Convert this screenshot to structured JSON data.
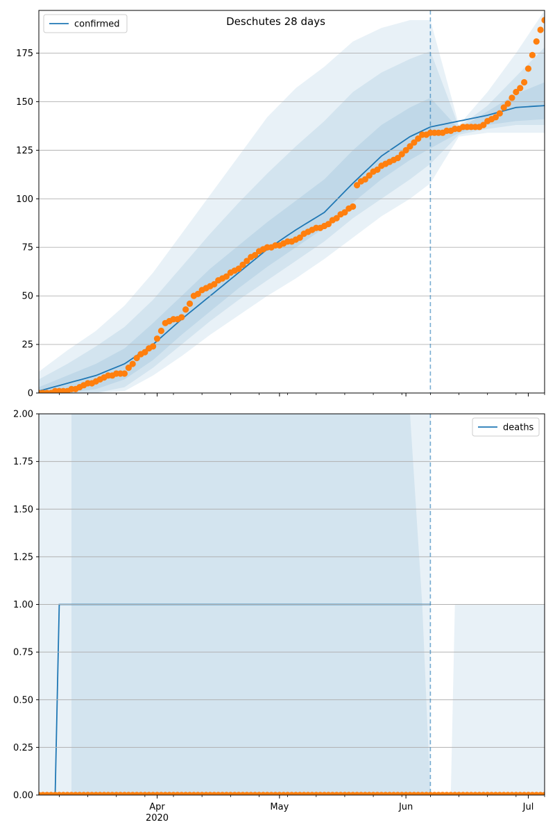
{
  "chart_data": [
    {
      "type": "line",
      "title": "Deschutes 28 days",
      "legend": {
        "label": "confirmed",
        "placement": "top-left"
      },
      "x_axis": {
        "type": "date",
        "start": "2020-03-03",
        "end": "2020-07-05"
      },
      "x_ticks": [],
      "ylim": [
        0,
        197
      ],
      "yticks": [
        0,
        25,
        50,
        75,
        100,
        125,
        150,
        175
      ],
      "ytick_labels": [
        "0",
        "25",
        "50",
        "75",
        "100",
        "125",
        "150",
        "175"
      ],
      "grid": "horizontal",
      "forecast_start": "2020-06-07",
      "line_color": "#1f77b4",
      "dot_color": "#ff7f0e",
      "band_color": "#1f77b4",
      "model": {
        "dates": [
          "2020-03-03",
          "2020-03-10",
          "2020-03-17",
          "2020-03-24",
          "2020-03-31",
          "2020-04-07",
          "2020-04-14",
          "2020-04-21",
          "2020-04-28",
          "2020-05-05",
          "2020-05-12",
          "2020-05-19",
          "2020-05-26",
          "2020-06-02",
          "2020-06-07",
          "2020-06-14",
          "2020-06-21",
          "2020-06-28",
          "2020-07-05"
        ],
        "values": [
          1,
          5,
          9,
          15,
          25,
          38,
          50,
          62,
          74,
          84,
          93,
          108,
          122,
          132,
          137,
          140,
          143,
          147,
          148
        ]
      },
      "bands": [
        {
          "lower": [
            0,
            0,
            0,
            1,
            9,
            19,
            30,
            40,
            50,
            59,
            69,
            80,
            91,
            100,
            108,
            132,
            134,
            134,
            134
          ],
          "upper": [
            11,
            22,
            32,
            45,
            62,
            82,
            102,
            122,
            142,
            157,
            168,
            181,
            188,
            192,
            192,
            138,
            155,
            175,
            197
          ]
        },
        {
          "lower": [
            0,
            0,
            0,
            3,
            13,
            25,
            37,
            48,
            58,
            68,
            78,
            90,
            100,
            110,
            118,
            133,
            136,
            138,
            138
          ],
          "upper": [
            7,
            15,
            24,
            34,
            48,
            65,
            82,
            98,
            113,
            127,
            140,
            155,
            165,
            172,
            176,
            137,
            148,
            163,
            178
          ]
        },
        {
          "lower": [
            0,
            0,
            2,
            7,
            17,
            30,
            42,
            54,
            65,
            75,
            85,
            98,
            110,
            120,
            126,
            134,
            138,
            140,
            141
          ],
          "upper": [
            3,
            9,
            15,
            23,
            36,
            50,
            64,
            76,
            88,
            99,
            110,
            125,
            138,
            147,
            152,
            136,
            145,
            154,
            160
          ]
        }
      ],
      "observed": {
        "dates": [
          "2020-03-03",
          "2020-03-10",
          "2020-03-13",
          "2020-03-17",
          "2020-03-20",
          "2020-03-24",
          "2020-03-27",
          "2020-03-31",
          "2020-04-03",
          "2020-04-07",
          "2020-04-10",
          "2020-04-14",
          "2020-04-17",
          "2020-04-21",
          "2020-04-24",
          "2020-04-28",
          "2020-05-01",
          "2020-05-05",
          "2020-05-08",
          "2020-05-12",
          "2020-05-15",
          "2020-05-19",
          "2020-05-20",
          "2020-05-26",
          "2020-05-30",
          "2020-06-02",
          "2020-06-05",
          "2020-06-09",
          "2020-06-12",
          "2020-06-16",
          "2020-06-19",
          "2020-06-23",
          "2020-06-26",
          "2020-06-30",
          "2020-07-03",
          "2020-07-05"
        ],
        "values": [
          0,
          1,
          3,
          6,
          9,
          10,
          18,
          24,
          36,
          39,
          50,
          55,
          59,
          64,
          70,
          75,
          76,
          79,
          83,
          86,
          90,
          96,
          107,
          117,
          121,
          127,
          133,
          134,
          135,
          137,
          137,
          142,
          149,
          160,
          181,
          192
        ]
      }
    },
    {
      "type": "line",
      "title": "",
      "legend": {
        "label": "deaths",
        "placement": "top-right"
      },
      "x_axis": {
        "type": "date",
        "start": "2020-03-03",
        "end": "2020-07-05"
      },
      "x_ticks": [
        {
          "date": "2020-04-01",
          "label": "Apr",
          "sublabel": "2020"
        },
        {
          "date": "2020-05-01",
          "label": "May",
          "sublabel": ""
        },
        {
          "date": "2020-06-01",
          "label": "Jun",
          "sublabel": ""
        },
        {
          "date": "2020-07-01",
          "label": "Jul",
          "sublabel": ""
        }
      ],
      "ylim": [
        0,
        2
      ],
      "yticks": [
        0,
        0.25,
        0.5,
        0.75,
        1,
        1.25,
        1.5,
        1.75,
        2
      ],
      "ytick_labels": [
        "0.00",
        "0.25",
        "0.50",
        "0.75",
        "1.00",
        "1.25",
        "1.50",
        "1.75",
        "2.00"
      ],
      "grid": "horizontal",
      "forecast_start": "2020-06-07",
      "line_color": "#1f77b4",
      "dot_color": "#ff7f0e",
      "band_color": "#1f77b4",
      "model": {
        "dates": [
          "2020-03-03",
          "2020-03-07",
          "2020-03-08",
          "2020-06-07"
        ],
        "values": [
          0,
          0,
          1,
          1
        ]
      },
      "bands": [
        {
          "lower": [
            0,
            0,
            0,
            0
          ],
          "upper": [
            2,
            2,
            2,
            2
          ],
          "dates": [
            "2020-03-03",
            "2020-06-07",
            "2020-06-07",
            "2020-06-07"
          ]
        },
        {
          "lower": [
            0,
            0,
            0,
            0,
            0
          ],
          "upper": [
            2,
            2,
            2,
            1,
            0
          ],
          "dates": [
            "2020-03-11",
            "2020-03-12",
            "2020-06-02",
            "2020-06-05",
            "2020-06-07"
          ]
        },
        {
          "lower": [
            0,
            0,
            0
          ],
          "upper": [
            0,
            1,
            1
          ],
          "dates": [
            "2020-06-12",
            "2020-06-13",
            "2020-07-05"
          ]
        }
      ],
      "observed": {
        "value": 0
      }
    }
  ]
}
